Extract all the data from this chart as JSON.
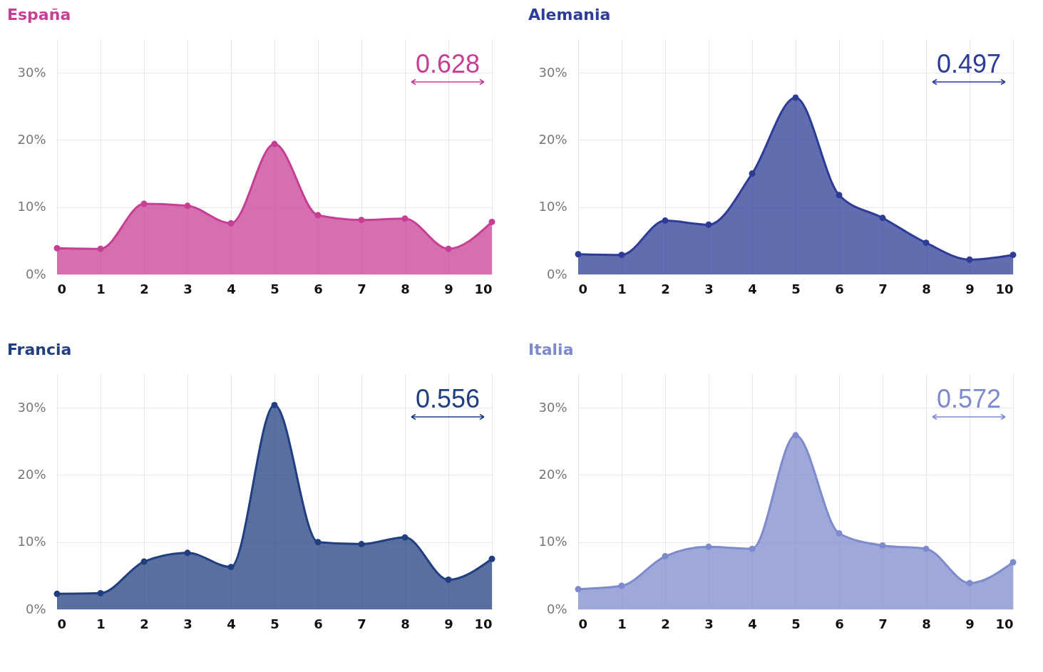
{
  "chart_data": [
    {
      "type": "area",
      "title": "España",
      "x": [
        0,
        1,
        2,
        3,
        4,
        5,
        6,
        7,
        8,
        9,
        10
      ],
      "xlim": [
        0,
        10
      ],
      "xticks": [
        0,
        1,
        2,
        3,
        4,
        5,
        6,
        7,
        8,
        9,
        10
      ],
      "ylim": [
        0,
        35
      ],
      "yticks": [
        {
          "value": 0,
          "label": "0%"
        },
        {
          "value": 10,
          "label": "10%"
        },
        {
          "value": 20,
          "label": "20%"
        },
        {
          "value": 30,
          "label": "30%"
        }
      ],
      "grid": true,
      "marker": "circle",
      "annotations": [
        "0.628"
      ],
      "series": [
        {
          "color": "#c73f95",
          "values": [
            3.9,
            3.8,
            10.5,
            10.2,
            7.6,
            19.4,
            8.8,
            8.1,
            8.3,
            3.8,
            7.8
          ]
        }
      ]
    },
    {
      "type": "area",
      "title": "Alemania",
      "x": [
        0,
        1,
        2,
        3,
        4,
        5,
        6,
        7,
        8,
        9,
        10
      ],
      "xlim": [
        0,
        10
      ],
      "xticks": [
        0,
        1,
        2,
        3,
        4,
        5,
        6,
        7,
        8,
        9,
        10
      ],
      "ylim": [
        0,
        35
      ],
      "yticks": [
        {
          "value": 0,
          "label": "0%"
        },
        {
          "value": 10,
          "label": "10%"
        },
        {
          "value": 20,
          "label": "20%"
        },
        {
          "value": 30,
          "label": "30%"
        }
      ],
      "grid": true,
      "marker": "circle",
      "annotations": [
        "0.497"
      ],
      "series": [
        {
          "color": "#2d3c96",
          "values": [
            3.0,
            2.9,
            8.0,
            7.4,
            15.0,
            26.3,
            11.8,
            8.4,
            4.7,
            2.2,
            2.9
          ]
        }
      ]
    },
    {
      "type": "area",
      "title": "Francia",
      "x": [
        0,
        1,
        2,
        3,
        4,
        5,
        6,
        7,
        8,
        9,
        10
      ],
      "xlim": [
        0,
        10
      ],
      "xticks": [
        0,
        1,
        2,
        3,
        4,
        5,
        6,
        7,
        8,
        9,
        10
      ],
      "ylim": [
        0,
        35
      ],
      "yticks": [
        {
          "value": 0,
          "label": "0%"
        },
        {
          "value": 10,
          "label": "10%"
        },
        {
          "value": 20,
          "label": "20%"
        },
        {
          "value": 30,
          "label": "30%"
        }
      ],
      "grid": true,
      "marker": "circle",
      "annotations": [
        "0.556"
      ],
      "series": [
        {
          "color": "#213f80",
          "values": [
            2.3,
            2.4,
            7.1,
            8.4,
            6.3,
            30.4,
            10.0,
            9.7,
            10.7,
            4.4,
            7.5
          ]
        }
      ]
    },
    {
      "type": "area",
      "title": "Italia",
      "x": [
        0,
        1,
        2,
        3,
        4,
        5,
        6,
        7,
        8,
        9,
        10
      ],
      "xlim": [
        0,
        10
      ],
      "xticks": [
        0,
        1,
        2,
        3,
        4,
        5,
        6,
        7,
        8,
        9,
        10
      ],
      "ylim": [
        0,
        35
      ],
      "yticks": [
        {
          "value": 0,
          "label": "0%"
        },
        {
          "value": 10,
          "label": "10%"
        },
        {
          "value": 20,
          "label": "20%"
        },
        {
          "value": 30,
          "label": "30%"
        }
      ],
      "grid": true,
      "marker": "circle",
      "annotations": [
        "0.572"
      ],
      "series": [
        {
          "color": "#7d8bcc",
          "values": [
            3.0,
            3.5,
            7.9,
            9.3,
            9.0,
            25.9,
            11.3,
            9.5,
            9.0,
            3.9,
            7.0
          ]
        }
      ]
    }
  ]
}
